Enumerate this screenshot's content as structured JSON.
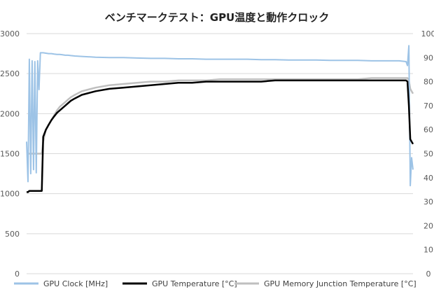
{
  "chart_data": {
    "type": "line",
    "title": "ベンチマークテスト：GPU温度と動作クロック",
    "y_left": {
      "range": [
        0,
        3000
      ],
      "ticks": [
        "0",
        "500",
        "1000",
        "1500",
        "2000",
        "2500",
        "3000"
      ]
    },
    "y_right": {
      "range": [
        0,
        100
      ],
      "ticks": [
        "0",
        "10",
        "20",
        "30",
        "40",
        "50",
        "60",
        "70",
        "80",
        "90",
        "100"
      ]
    },
    "grid": true,
    "legend_position": "bottom",
    "x": [
      0,
      1,
      2,
      3,
      4,
      5,
      6,
      7,
      8,
      9,
      10,
      11,
      12,
      14,
      16,
      18,
      20,
      22,
      24,
      26,
      28,
      30,
      32,
      35,
      40,
      50,
      60,
      70,
      80,
      90,
      100,
      110,
      120,
      130,
      140,
      150,
      160,
      170,
      180,
      190,
      200,
      210,
      220,
      230,
      240,
      250,
      260,
      270,
      275,
      276,
      277,
      278,
      279,
      280
    ],
    "series": [
      {
        "name": "GPU Clock [MHz]",
        "axis": "left",
        "color": "#9dc3e6",
        "values": [
          1650,
          1150,
          2680,
          1250,
          2660,
          1300,
          2650,
          1260,
          2660,
          2300,
          2760,
          2760,
          2760,
          2755,
          2750,
          2750,
          2745,
          2740,
          2740,
          2735,
          2730,
          2730,
          2725,
          2720,
          2715,
          2705,
          2700,
          2700,
          2695,
          2690,
          2690,
          2685,
          2685,
          2680,
          2680,
          2680,
          2680,
          2675,
          2675,
          2670,
          2670,
          2670,
          2665,
          2665,
          2665,
          2660,
          2660,
          2660,
          2650,
          2600,
          2850,
          1100,
          1450,
          1300
        ]
      },
      {
        "name": "GPU Temperature [°C]",
        "axis": "right",
        "color": "#000000",
        "values": [
          34,
          34,
          34.5,
          34.5,
          34.5,
          34.5,
          34.5,
          34.5,
          34.5,
          34.5,
          34.5,
          34.5,
          57,
          60,
          62,
          64,
          65.5,
          67,
          68,
          69,
          70,
          71,
          72,
          73,
          74.5,
          76,
          77,
          77.5,
          78,
          78.5,
          79,
          79.5,
          79.5,
          80,
          80,
          80,
          80,
          80,
          80.5,
          80.5,
          80.5,
          80.5,
          80.5,
          80.5,
          80.5,
          80.5,
          80.5,
          80.5,
          80.5,
          80,
          70,
          56,
          55,
          54
        ]
      },
      {
        "name": "GPU Memory Junction Temperature [°C]",
        "axis": "right",
        "color": "#bfbfbf",
        "values": [
          50,
          50,
          50,
          50,
          50,
          50,
          50,
          50,
          50,
          50,
          50,
          50,
          55,
          60,
          62,
          64,
          66,
          68,
          69.5,
          70.5,
          71.5,
          72.5,
          73.5,
          74.5,
          76,
          77.5,
          78.5,
          79,
          79.5,
          80,
          80,
          80.5,
          80.5,
          80.5,
          81,
          81,
          81,
          81,
          81,
          81,
          81,
          81,
          81,
          81,
          81,
          81.5,
          81.5,
          81.5,
          81.5,
          81.5,
          80.5,
          77,
          76,
          75
        ]
      }
    ]
  }
}
